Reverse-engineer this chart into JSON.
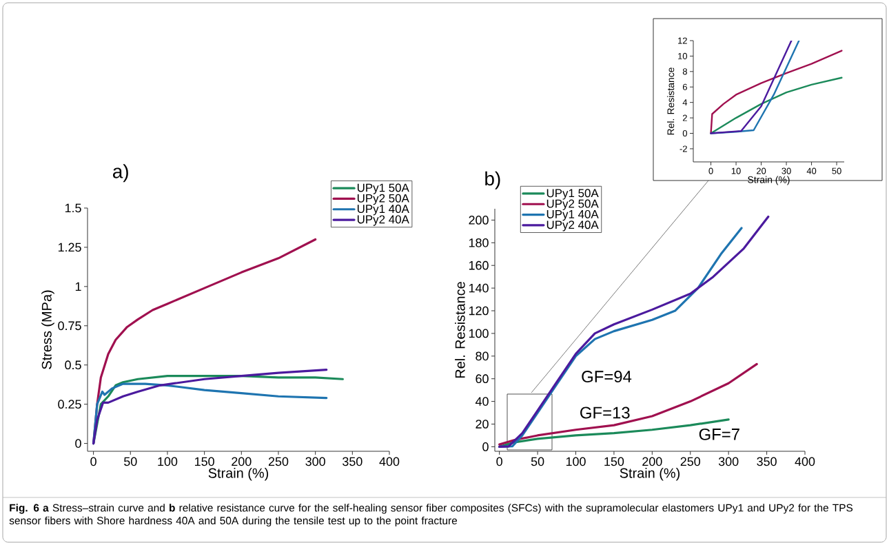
{
  "chart_data": [
    {
      "type": "line",
      "title": "a)",
      "xlabel": "Strain (%)",
      "ylabel": "Stress (MPa)",
      "xlim": [
        -8,
        400
      ],
      "ylim": [
        -0.05,
        1.5
      ],
      "xticks": [
        0,
        50,
        100,
        150,
        200,
        250,
        300,
        350,
        400
      ],
      "yticks": [
        0,
        0.25,
        0.5,
        0.75,
        1,
        1.25,
        1.5
      ],
      "legend": "top right",
      "series": [
        {
          "name": "UPy1 50A",
          "color": "#1b8a5a",
          "x": [
            0,
            10,
            20,
            30,
            40,
            60,
            100,
            150,
            200,
            250,
            300,
            337
          ],
          "values": [
            0,
            0.25,
            0.3,
            0.37,
            0.39,
            0.41,
            0.43,
            0.43,
            0.43,
            0.42,
            0.42,
            0.41
          ]
        },
        {
          "name": "UPy2 50A",
          "color": "#a0104f",
          "x": [
            0,
            5,
            10,
            20,
            30,
            45,
            60,
            80,
            100,
            150,
            200,
            250,
            300
          ],
          "values": [
            0,
            0.25,
            0.42,
            0.57,
            0.66,
            0.74,
            0.79,
            0.85,
            0.89,
            0.99,
            1.09,
            1.18,
            1.3
          ]
        },
        {
          "name": "UPy1 40A",
          "color": "#1e74b0",
          "x": [
            0,
            5,
            12,
            15,
            25,
            40,
            70,
            100,
            150,
            200,
            250,
            315
          ],
          "values": [
            0,
            0.25,
            0.33,
            0.31,
            0.35,
            0.38,
            0.38,
            0.37,
            0.34,
            0.32,
            0.3,
            0.29
          ]
        },
        {
          "name": "UPy2 40A",
          "color": "#4b1a9e",
          "x": [
            0,
            5,
            13,
            20,
            40,
            60,
            90,
            150,
            200,
            250,
            315
          ],
          "values": [
            0,
            0.15,
            0.26,
            0.26,
            0.3,
            0.33,
            0.37,
            0.41,
            0.43,
            0.45,
            0.47
          ]
        }
      ],
      "annotations": [
        "**Fig. 6**  **a** Stress–strain curve and **b** relative resistance curve for the self-healing sensor fiber composites (SFCs) with the supramolecular elastomers UPy1 and UPy2 for the TPS sensor fibers with Shore hardness 40A and 50A during the tensile test up to the point fracture"
      ]
    },
    {
      "type": "line",
      "title": "b)",
      "xlabel": "Strain (%)",
      "ylabel": "Rel. Resistance",
      "xlim": [
        -6,
        400
      ],
      "ylim": [
        -4,
        210
      ],
      "xticks": [
        0,
        50,
        100,
        150,
        200,
        250,
        300,
        350,
        400
      ],
      "yticks": [
        0,
        20,
        40,
        60,
        80,
        100,
        120,
        140,
        160,
        180,
        200
      ],
      "legend": "top left",
      "series": [
        {
          "name": "UPy1 50A",
          "color": "#1b8a5a",
          "x": [
            0,
            20,
            50,
            100,
            150,
            200,
            250,
            300
          ],
          "values": [
            0,
            4,
            7,
            10,
            12,
            15,
            19,
            24
          ]
        },
        {
          "name": "UPy2 50A",
          "color": "#a0104f",
          "x": [
            0,
            20,
            50,
            100,
            150,
            200,
            250,
            300,
            337
          ],
          "values": [
            2,
            6,
            10,
            15,
            19,
            27,
            40,
            56,
            73
          ]
        },
        {
          "name": "UPy1 40A",
          "color": "#1e74b0",
          "x": [
            0,
            17,
            30,
            50,
            75,
            100,
            125,
            150,
            200,
            230,
            260,
            290,
            317
          ],
          "values": [
            0,
            0.4,
            10,
            30,
            55,
            80,
            95,
            102,
            112,
            120,
            140,
            170,
            193
          ]
        },
        {
          "name": "UPy2 40A",
          "color": "#4b1a9e",
          "x": [
            0,
            12,
            30,
            50,
            75,
            100,
            125,
            150,
            200,
            250,
            280,
            320,
            352
          ],
          "values": [
            0,
            0.3,
            12,
            32,
            57,
            82,
            100,
            108,
            121,
            135,
            150,
            175,
            203
          ]
        }
      ],
      "annotations": [
        "GF=94",
        "GF=13",
        "GF=7"
      ]
    },
    {
      "type": "line",
      "xlabel": "Strain (%)",
      "ylabel": "Rel. Resistance",
      "xlim": [
        -7,
        53
      ],
      "ylim": [
        -3.7,
        12
      ],
      "xticks": [
        0,
        10,
        20,
        30,
        40,
        50
      ],
      "yticks": [
        -2,
        0,
        2,
        4,
        6,
        8,
        10,
        12
      ],
      "series": [
        {
          "color": "#1b8a5a",
          "x": [
            0,
            10,
            20,
            30,
            40,
            52
          ],
          "values": [
            0,
            2,
            3.8,
            5.3,
            6.3,
            7.2
          ]
        },
        {
          "color": "#a0104f",
          "x": [
            0,
            0.5,
            5,
            10,
            20,
            30,
            40,
            52
          ],
          "values": [
            0,
            2.5,
            3.8,
            5,
            6.5,
            7.8,
            9,
            10.7
          ]
        },
        {
          "color": "#1e74b0",
          "x": [
            0,
            10,
            17,
            25,
            35
          ],
          "values": [
            0,
            0.2,
            0.4,
            5,
            12
          ]
        },
        {
          "color": "#4b1a9e",
          "x": [
            0,
            12,
            20,
            32
          ],
          "values": [
            0,
            0.3,
            3.5,
            12
          ]
        }
      ]
    }
  ]
}
